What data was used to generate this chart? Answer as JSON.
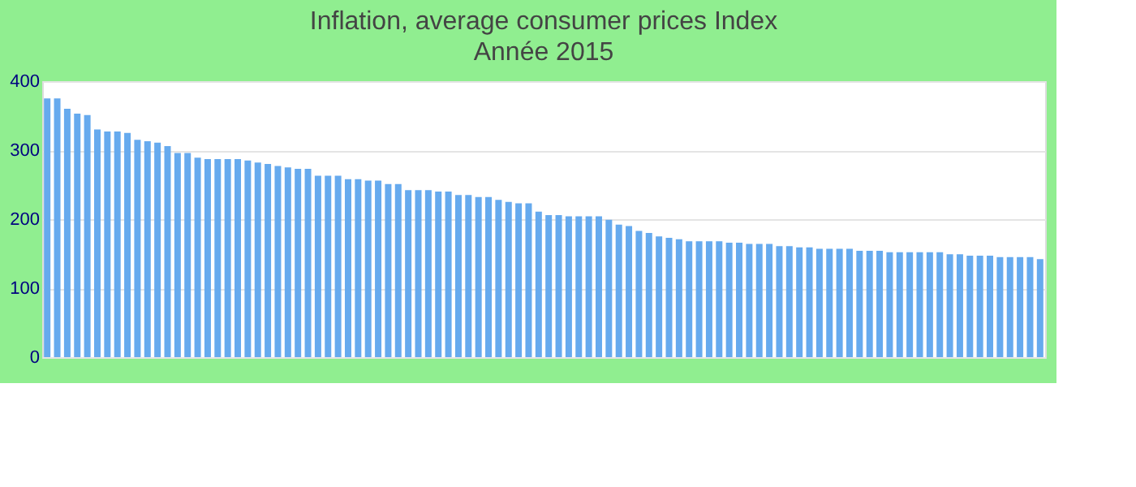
{
  "chart_data": {
    "type": "bar",
    "title": "Inflation, average consumer prices  Index",
    "subtitle": "Année 2015",
    "categories": [
      null,
      null,
      null,
      null,
      null,
      null,
      null,
      null,
      null,
      null,
      null,
      null,
      null,
      null,
      null,
      null,
      null,
      null,
      null,
      null,
      null,
      null,
      null,
      null,
      null,
      null,
      null,
      null,
      null,
      null,
      null,
      null,
      null,
      null,
      null,
      null,
      null,
      null,
      null,
      null,
      null,
      null,
      null,
      null,
      null,
      null,
      null,
      null,
      null,
      null,
      null,
      null,
      null,
      null,
      null,
      null,
      null,
      null,
      null,
      null,
      null,
      null,
      null,
      null,
      null,
      null,
      null,
      null,
      null,
      null,
      null,
      null,
      null,
      null,
      null,
      null,
      null,
      null,
      null,
      null,
      null,
      null,
      null,
      null,
      null,
      null,
      null,
      null,
      null,
      null,
      null,
      null,
      null,
      null,
      null,
      null,
      null,
      null,
      null,
      null
    ],
    "values": [
      375,
      375,
      360,
      353,
      351,
      330,
      327,
      327,
      325,
      315,
      313,
      311,
      306,
      296,
      296,
      289,
      287,
      287,
      287,
      287,
      285,
      282,
      280,
      277,
      275,
      273,
      273,
      263,
      263,
      263,
      258,
      258,
      256,
      256,
      251,
      251,
      242,
      242,
      242,
      240,
      240,
      235,
      235,
      232,
      232,
      228,
      225,
      223,
      223,
      211,
      206,
      206,
      204,
      204,
      204,
      204,
      199,
      192,
      190,
      183,
      180,
      175,
      173,
      171,
      168,
      168,
      168,
      168,
      166,
      166,
      164,
      164,
      164,
      161,
      161,
      159,
      159,
      157,
      157,
      157,
      157,
      154,
      154,
      154,
      152,
      152,
      152,
      152,
      152,
      152,
      149,
      149,
      147,
      147,
      147,
      145,
      145,
      145,
      145,
      142
    ],
    "color": "#66aaee",
    "ylim": [
      0,
      400
    ],
    "yticks": [
      0,
      100,
      200,
      300,
      400
    ],
    "grid": "y"
  }
}
